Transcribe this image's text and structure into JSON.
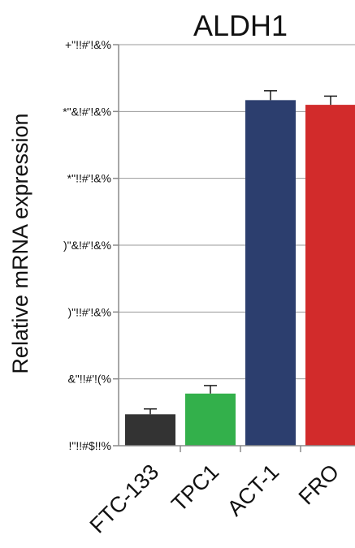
{
  "chart_data": {
    "type": "bar",
    "title": "ALDH1",
    "ylabel": "Relative mRNA expression",
    "xlabel": "",
    "categories": [
      "FTC-133",
      "TPC1",
      "ACT-1",
      "FRO"
    ],
    "values": [
      0.47,
      0.78,
      5.17,
      5.1
    ],
    "errors": [
      0.08,
      0.12,
      0.14,
      0.13
    ],
    "colors": [
      "#333333",
      "#33b04b",
      "#2c3e6e",
      "#d22b2b"
    ],
    "ylim": [
      0,
      6
    ],
    "yticks": [
      0,
      1,
      2,
      3,
      4,
      5,
      6
    ],
    "ytick_labels": [
      "!\"!!#$!!%",
      "&\"!!#'!(%",
      ")\"!!#'!&%",
      ")\"&!#'!&%",
      "*\"!!#'!&%",
      "*\"&!#'!&%",
      "+\"!!#'!&%"
    ],
    "grid": true
  }
}
